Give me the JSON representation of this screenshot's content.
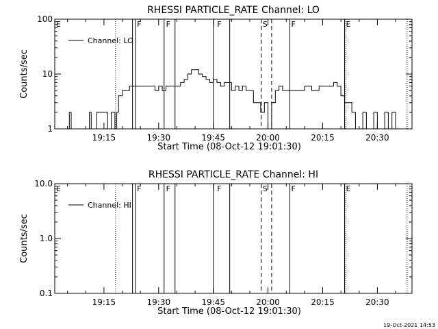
{
  "chart_data": [
    {
      "type": "line",
      "title": "RHESSI PARTICLE_RATE Channel: LO",
      "xlabel": "Start Time (08-Oct-12 19:01:30)",
      "ylabel": "Counts/sec",
      "yscale": "log",
      "ylim": [
        1,
        100
      ],
      "xlim": [
        "19:01:30",
        "20:39:30"
      ],
      "x_ticks": [
        "19:15",
        "19:30",
        "19:45",
        "20:00",
        "20:15",
        "20:30"
      ],
      "y_ticks": [
        "1",
        "10",
        "100"
      ],
      "legend": {
        "position": "top-left",
        "entries": [
          "Channel: LO"
        ]
      },
      "grid": false,
      "series": [
        {
          "name": "Channel: LO",
          "x": [
            "19:05:00",
            "19:05:30",
            "19:06:00",
            "19:10:30",
            "19:11:00",
            "19:11:30",
            "19:12:00",
            "19:13:00",
            "19:14:00",
            "19:15:00",
            "19:16:00",
            "19:17:00",
            "19:18:00",
            "19:18:30",
            "19:19:00",
            "19:20:00",
            "19:21:00",
            "19:22:00",
            "19:23:00",
            "19:24:00",
            "19:25:00",
            "19:27:00",
            "19:29:00",
            "19:30:00",
            "19:31:00",
            "19:32:00",
            "19:33:00",
            "19:35:00",
            "19:36:00",
            "19:37:00",
            "19:38:00",
            "19:39:00",
            "19:40:00",
            "19:41:00",
            "19:42:00",
            "19:43:00",
            "19:44:00",
            "19:45:00",
            "19:46:00",
            "19:47:00",
            "19:48:00",
            "19:49:00",
            "19:50:00",
            "19:51:00",
            "19:52:00",
            "19:53:00",
            "19:54:00",
            "19:55:00",
            "19:56:00",
            "19:57:00",
            "19:58:00",
            "19:59:00",
            "20:00:00",
            "20:01:00",
            "20:02:00",
            "20:03:00",
            "20:04:00",
            "20:06:00",
            "20:08:00",
            "20:10:00",
            "20:12:00",
            "20:14:00",
            "20:16:00",
            "20:18:00",
            "20:19:00",
            "20:20:00",
            "20:21:00",
            "20:22:00",
            "20:23:00",
            "20:24:00",
            "20:25:00",
            "20:26:00",
            "20:27:00",
            "20:28:00",
            "20:29:00",
            "20:30:00",
            "20:31:00",
            "20:32:00",
            "20:33:00",
            "20:34:00",
            "20:35:00",
            "20:36:00"
          ],
          "y": [
            1,
            2,
            1,
            1,
            2,
            1,
            1,
            2,
            2,
            2,
            1,
            2,
            1,
            2,
            4,
            5,
            5,
            6,
            6,
            6,
            6,
            6,
            5,
            6,
            5,
            6,
            6,
            6,
            7,
            8,
            10,
            12,
            12,
            10,
            9,
            8,
            7,
            8,
            7,
            6,
            7,
            7,
            5,
            6,
            5,
            6,
            5,
            5,
            3,
            3,
            2,
            3,
            1,
            3,
            5,
            6,
            5,
            5,
            5,
            6,
            5,
            6,
            6,
            7,
            6,
            4,
            3,
            3,
            2,
            1,
            1,
            2,
            1,
            1,
            2,
            1,
            1,
            2,
            1,
            2,
            1,
            1
          ]
        }
      ],
      "flags": [
        {
          "label": "E",
          "x": "19:01:30"
        },
        {
          "label": "F",
          "x": "19:23:40"
        },
        {
          "label": "F",
          "x": "19:31:40"
        },
        {
          "label": "F",
          "x": "19:45:40"
        },
        {
          "label": "S",
          "x": "19:58:10"
        },
        {
          "label": "F",
          "x": "20:06:00"
        },
        {
          "label": "E",
          "x": "20:21:00"
        }
      ],
      "solid_lines": [
        "19:22:50",
        "19:23:40",
        "19:31:30",
        "19:34:30",
        "19:45:00",
        "19:49:30",
        "20:06:00",
        "20:21:00"
      ],
      "dashed_lines": [
        "19:58:10",
        "20:01:00"
      ],
      "dotted_lines": [
        "19:18:10",
        "20:21:20",
        "20:38:10"
      ]
    },
    {
      "type": "line",
      "title": "RHESSI PARTICLE_RATE Channel: HI",
      "xlabel": "Start Time (08-Oct-12 19:01:30)",
      "ylabel": "Counts/sec",
      "yscale": "log",
      "ylim": [
        0.1,
        10
      ],
      "xlim": [
        "19:01:30",
        "20:39:30"
      ],
      "x_ticks": [
        "19:15",
        "19:30",
        "19:45",
        "20:00",
        "20:15",
        "20:30"
      ],
      "y_ticks": [
        "0.1",
        "1.0",
        "10.0"
      ],
      "legend": {
        "position": "top-left",
        "entries": [
          "Channel: HI"
        ]
      },
      "grid": false,
      "series": [
        {
          "name": "Channel: HI",
          "x": [],
          "y": []
        }
      ],
      "flags": [
        {
          "label": "E",
          "x": "19:01:30"
        },
        {
          "label": "F",
          "x": "19:23:40"
        },
        {
          "label": "F",
          "x": "19:31:40"
        },
        {
          "label": "F",
          "x": "19:45:40"
        },
        {
          "label": "S",
          "x": "19:58:10"
        },
        {
          "label": "F",
          "x": "20:06:00"
        },
        {
          "label": "E",
          "x": "20:21:00"
        }
      ],
      "solid_lines": [
        "19:22:50",
        "19:23:40",
        "19:31:30",
        "19:34:30",
        "19:45:00",
        "19:49:30",
        "20:06:00",
        "20:21:00"
      ],
      "dashed_lines": [
        "19:58:10",
        "20:01:00"
      ],
      "dotted_lines": [
        "19:18:10",
        "20:21:20",
        "20:38:10"
      ]
    }
  ],
  "footer": {
    "stamp": "19-Oct-2021 14:53"
  },
  "colors": {
    "background": "#ffffff",
    "ink": "#000000"
  }
}
